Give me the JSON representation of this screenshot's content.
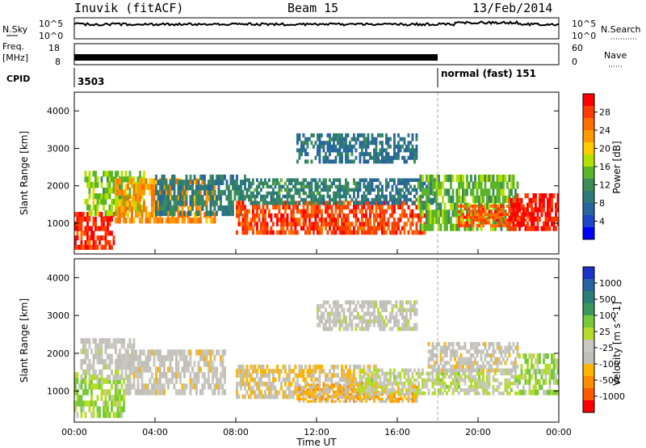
{
  "header": {
    "station": "Inuvik (fitACF)",
    "beam": "Beam 15",
    "date": "13/Feb/2014"
  },
  "top_panels": {
    "nsky_label": "N.Sky",
    "nsky_ticks": [
      "10^5",
      "10^0"
    ],
    "nsearch_label": "N.Search",
    "nsearch_ticks": [
      "10^5",
      "10^0"
    ],
    "freq_label": "Freq.",
    "freq_unit": "[MHz]",
    "freq_ticks": [
      "18",
      "8"
    ],
    "nave_label": "Nave",
    "nave_ticks": [
      "60",
      "0"
    ],
    "cpid_label": "CPID",
    "cpid_start": "3503",
    "cpid_mode": "normal (fast) 151",
    "cpid_change_hour": 18.0
  },
  "range_axis": {
    "label": "Slant Range [km]",
    "ticks": [
      "4000",
      "3000",
      "2000",
      "1000"
    ]
  },
  "time_axis": {
    "label": "Time UT",
    "ticks": [
      "00:00",
      "04:00",
      "08:00",
      "12:00",
      "16:00",
      "20:00",
      "00:00"
    ]
  },
  "power_scale": {
    "label": "Power [dB]",
    "ticks": [
      "28",
      "24",
      "20",
      "16",
      "12",
      "8",
      "4"
    ],
    "colors": [
      "#ff0000",
      "#ff3c00",
      "#ff6e00",
      "#ff9b00",
      "#ffcc00",
      "#b4e000",
      "#5ab428",
      "#3c8c5a",
      "#2e7a78",
      "#2864a0",
      "#1e46c8",
      "#0000ff"
    ]
  },
  "velocity_scale": {
    "label": "Velocity [m s^-1]",
    "ticks": [
      "1000",
      "500",
      "100",
      "25",
      "-25",
      "-100",
      "-500",
      "-1000"
    ],
    "colors": [
      "#1e32c8",
      "#2864a0",
      "#2d7d78",
      "#3c965a",
      "#78c83c",
      "#b4dc28",
      "#c8c8c0",
      "#c0c0b8",
      "#ffb400",
      "#ff8c00",
      "#ff5a00",
      "#ff0000"
    ]
  },
  "chart_data": {
    "type": "heatmap",
    "x": {
      "label": "Time UT",
      "range_hours": [
        0,
        24
      ]
    },
    "y": {
      "label": "Slant Range [km]",
      "range_km": [
        180,
        4500
      ]
    },
    "panels": [
      {
        "name": "Power",
        "units": "dB",
        "scale_range": [
          0,
          30
        ],
        "bands": [
          {
            "t0": 0.0,
            "t1": 2.0,
            "r0": 300,
            "r1": 1300,
            "value": 27
          },
          {
            "t0": 0.5,
            "t1": 3.5,
            "r0": 1200,
            "r1": 2400,
            "value": 15
          },
          {
            "t0": 2.0,
            "t1": 7.0,
            "r0": 1000,
            "r1": 2200,
            "value": 22
          },
          {
            "t0": 4.0,
            "t1": 8.5,
            "r0": 1200,
            "r1": 2300,
            "value": 9
          },
          {
            "t0": 8.0,
            "t1": 17.5,
            "r0": 700,
            "r1": 1600,
            "value": 26
          },
          {
            "t0": 8.5,
            "t1": 14.0,
            "r0": 1500,
            "r1": 2200,
            "value": 10
          },
          {
            "t0": 14.0,
            "t1": 18.0,
            "r0": 1500,
            "r1": 2200,
            "value": 8
          },
          {
            "t0": 17.0,
            "t1": 22.0,
            "r0": 800,
            "r1": 2300,
            "value": 14
          },
          {
            "t0": 19.0,
            "t1": 22.5,
            "r0": 900,
            "r1": 1500,
            "value": 25
          },
          {
            "t0": 21.5,
            "t1": 24.0,
            "r0": 800,
            "r1": 1800,
            "value": 28
          },
          {
            "t0": 11.0,
            "t1": 17.0,
            "r0": 2600,
            "r1": 3400,
            "value": 8
          }
        ]
      },
      {
        "name": "Velocity",
        "units": "m s^-1",
        "scale_range": [
          -1000,
          1000
        ],
        "bands": [
          {
            "t0": 0.0,
            "t1": 2.5,
            "r0": 300,
            "r1": 1500,
            "value": 150
          },
          {
            "t0": 0.3,
            "t1": 3.0,
            "r0": 1300,
            "r1": 2400,
            "value": -150
          },
          {
            "t0": 2.5,
            "t1": 7.5,
            "r0": 900,
            "r1": 2100,
            "value": -200
          },
          {
            "t0": 8.0,
            "t1": 15.0,
            "r0": 800,
            "r1": 1700,
            "value": -300
          },
          {
            "t0": 11.0,
            "t1": 17.0,
            "r0": 700,
            "r1": 1200,
            "value": -400
          },
          {
            "t0": 14.0,
            "t1": 22.0,
            "r0": 900,
            "r1": 1600,
            "value": 0
          },
          {
            "t0": 17.5,
            "t1": 22.0,
            "r0": 1500,
            "r1": 2300,
            "value": -200
          },
          {
            "t0": 22.0,
            "t1": 24.0,
            "r0": 900,
            "r1": 2000,
            "value": 120
          },
          {
            "t0": 12.0,
            "t1": 17.0,
            "r0": 2600,
            "r1": 3400,
            "value": -150
          }
        ]
      }
    ]
  }
}
